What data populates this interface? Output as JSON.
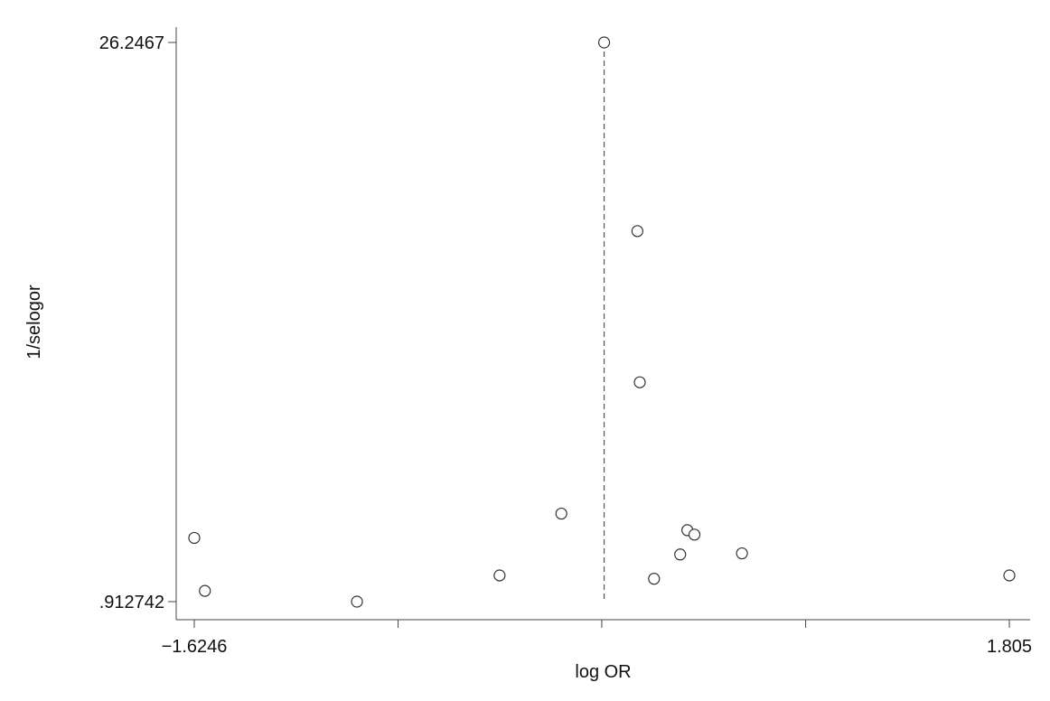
{
  "chart_data": {
    "type": "scatter",
    "xlabel": "log OR",
    "ylabel": "1/selogor",
    "xlim": [
      -1.6246,
      1.805
    ],
    "ylim": [
      0.912742,
      26.2467
    ],
    "x_tick_labels": [
      "−1.6246",
      "1.805"
    ],
    "x_ticks": [
      -1.6246,
      -0.767,
      0.09,
      0.948,
      1.805
    ],
    "y_tick_labels": [
      ".912742",
      "26.2467"
    ],
    "y_ticks": [
      0.912742,
      26.2467
    ],
    "reference_line_x": 0.1,
    "points": [
      {
        "x": 0.1,
        "y": 26.2467
      },
      {
        "x": 0.24,
        "y": 17.7
      },
      {
        "x": 0.25,
        "y": 10.85
      },
      {
        "x": -0.08,
        "y": 4.9
      },
      {
        "x": 0.45,
        "y": 4.15
      },
      {
        "x": 0.48,
        "y": 3.95
      },
      {
        "x": -1.6246,
        "y": 3.8
      },
      {
        "x": 0.42,
        "y": 3.05
      },
      {
        "x": 0.68,
        "y": 3.1
      },
      {
        "x": -0.34,
        "y": 2.1
      },
      {
        "x": 1.805,
        "y": 2.1
      },
      {
        "x": 0.31,
        "y": 1.95
      },
      {
        "x": -1.58,
        "y": 1.4
      },
      {
        "x": -0.94,
        "y": 0.912742
      }
    ],
    "marker": "hollow-circle",
    "grid": false,
    "legend": "none"
  }
}
